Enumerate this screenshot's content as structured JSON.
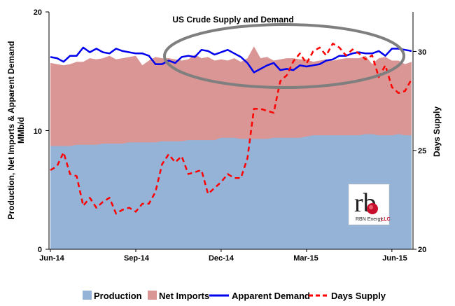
{
  "chart_data": {
    "type": "area",
    "title": "US Crude Supply and Demand",
    "ylabel_left": "Production, Net Imports & Apparent Demand MMb/d",
    "ylabel_left_lines": [
      "Production, Net Imports & Apparent Demand",
      "MMb/d"
    ],
    "ylabel_right": "Days Supply",
    "ylim_left": [
      0,
      20
    ],
    "ylim_right": [
      20,
      32
    ],
    "yticks_left": [
      "0",
      "10",
      "20"
    ],
    "yticks_right": [
      "20",
      "25",
      "30"
    ],
    "xtick_labels": [
      "Jun-14",
      "Sep-14",
      "Dec-14",
      "Mar-15",
      "Jun-15"
    ],
    "xtick_positions": [
      0,
      13,
      26,
      39,
      52
    ],
    "x_count": 56,
    "series": [
      {
        "name": "Production",
        "kind": "area",
        "color": "#95b3d7",
        "values": [
          8.7,
          8.7,
          8.7,
          8.7,
          8.8,
          8.8,
          8.8,
          8.8,
          8.9,
          8.9,
          8.9,
          8.9,
          9.0,
          9.0,
          9.0,
          9.0,
          9.0,
          9.1,
          9.1,
          9.1,
          9.1,
          9.2,
          9.2,
          9.2,
          9.2,
          9.2,
          9.4,
          9.4,
          9.4,
          9.3,
          9.3,
          9.3,
          9.3,
          9.3,
          9.4,
          9.4,
          9.4,
          9.4,
          9.4,
          9.5,
          9.6,
          9.6,
          9.6,
          9.6,
          9.6,
          9.6,
          9.6,
          9.6,
          9.7,
          9.7,
          9.6,
          9.6,
          9.6,
          9.7,
          9.6,
          9.6
        ]
      },
      {
        "name": "Net Imports",
        "kind": "stacked-area",
        "color": "#d99694",
        "values": [
          7.0,
          6.9,
          6.8,
          6.9,
          7.0,
          7.0,
          7.3,
          7.2,
          7.2,
          7.4,
          7.1,
          7.2,
          7.2,
          7.3,
          6.5,
          6.9,
          7.2,
          7.0,
          7.0,
          6.9,
          6.8,
          6.8,
          7.2,
          6.9,
          7.0,
          6.7,
          6.6,
          6.5,
          6.7,
          6.5,
          6.8,
          7.8,
          6.8,
          6.9,
          6.5,
          6.6,
          6.7,
          6.7,
          6.6,
          6.5,
          6.2,
          6.3,
          6.4,
          6.3,
          6.4,
          6.5,
          6.5,
          6.5,
          6.6,
          5.9,
          6.5,
          6.6,
          6.3,
          6.2,
          6.0,
          6.2
        ]
      },
      {
        "name": "Apparent Demand",
        "kind": "line",
        "color": "#0000ee",
        "values": [
          16.2,
          16.1,
          15.8,
          16.3,
          16.3,
          17.0,
          16.6,
          16.9,
          16.6,
          16.5,
          16.9,
          16.7,
          16.6,
          16.5,
          16.5,
          16.3,
          15.6,
          15.6,
          15.9,
          15.7,
          16.2,
          16.3,
          16.2,
          16.8,
          16.7,
          16.4,
          16.6,
          16.8,
          16.5,
          16.2,
          15.7,
          14.9,
          15.2,
          15.5,
          15.7,
          15.1,
          15.2,
          15.1,
          15.5,
          15.4,
          15.5,
          15.6,
          15.9,
          16.0,
          16.3,
          16.3,
          16.5,
          16.6,
          16.5,
          16.5,
          16.7,
          16.3,
          16.9,
          16.9,
          16.8,
          16.7
        ]
      },
      {
        "name": "Days Supply",
        "kind": "dashed-line",
        "axis": "right",
        "color": "#ff0000",
        "values": [
          24.0,
          24.2,
          24.9,
          23.8,
          23.7,
          22.2,
          22.6,
          22.1,
          22.4,
          22.6,
          21.8,
          22.0,
          22.1,
          21.9,
          22.3,
          22.3,
          22.9,
          24.3,
          24.8,
          24.4,
          24.7,
          23.8,
          23.9,
          24.0,
          22.8,
          23.1,
          23.4,
          23.8,
          23.6,
          23.6,
          24.6,
          27.1,
          27.1,
          27.0,
          26.9,
          28.5,
          28.8,
          29.5,
          29.9,
          29.4,
          30.0,
          30.2,
          29.8,
          30.4,
          30.2,
          29.8,
          30.1,
          29.9,
          29.6,
          29.8,
          28.7,
          29.3,
          28.2,
          27.9,
          28.0,
          28.6
        ]
      }
    ],
    "legend_position": "bottom",
    "grid": false
  },
  "legend": {
    "production": "Production",
    "net_imports": "Net Imports",
    "apparent_demand": "Apparent Demand",
    "days_supply": "Days Supply"
  },
  "logo": {
    "mark": "rb",
    "text_main": "RBN Energy",
    "text_suffix": "LLC"
  },
  "colors": {
    "production": "#95b3d7",
    "net_imports": "#d99694",
    "apparent_demand": "#0000ee",
    "days_supply": "#ff0000"
  }
}
